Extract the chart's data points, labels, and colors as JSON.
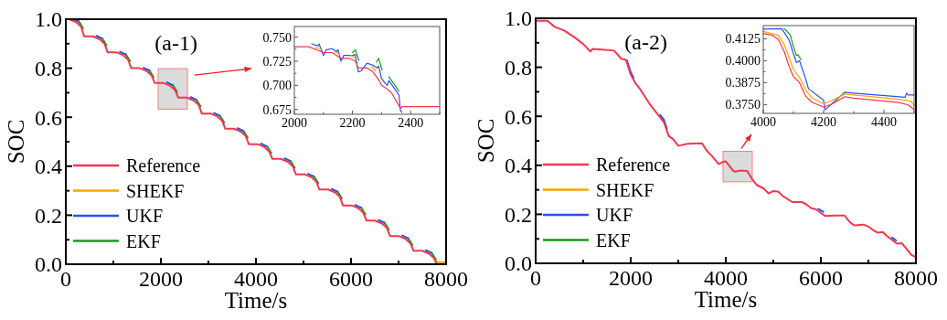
{
  "chart_data": [
    {
      "type": "line",
      "title": "(a-1)",
      "xlabel": "Time/s",
      "ylabel": "SOC",
      "legend": "bottom left",
      "grid": false,
      "xlim": [
        0,
        8000
      ],
      "ylim": [
        0,
        1
      ],
      "xticks": [
        0,
        {
          "value": 1000,
          "label": null
        },
        2000,
        {
          "value": 3000,
          "label": null
        },
        4000,
        {
          "value": 5000,
          "label": null
        },
        6000,
        {
          "value": 7000,
          "label": null
        },
        8000
      ],
      "yticks": [
        {
          "value": 0,
          "label": "0.0"
        },
        {
          "value": 0.1,
          "label": null
        },
        0.2,
        {
          "value": 0.3,
          "label": null
        },
        0.4,
        {
          "value": 0.5,
          "label": null
        },
        0.6,
        {
          "value": 0.7,
          "label": null
        },
        0.8,
        {
          "value": 0.9,
          "label": null
        },
        {
          "value": 1,
          "label": "1.0"
        }
      ],
      "series": [
        {
          "name": "Reference",
          "color": "#f0384f",
          "x": [
            0,
            70,
            220,
            320,
            385,
            565,
            715,
            815,
            880,
            1060,
            1210,
            1310,
            1375,
            1555,
            1705,
            1805,
            1870,
            2050,
            2200,
            2300,
            2365,
            2545,
            2695,
            2795,
            2860,
            3040,
            3190,
            3290,
            3355,
            3535,
            3685,
            3785,
            3850,
            4030,
            4180,
            4280,
            4345,
            4525,
            4675,
            4775,
            4840,
            5020,
            5170,
            5270,
            5335,
            5515,
            5665,
            5765,
            5830,
            6010,
            6160,
            6260,
            6325,
            6505,
            6655,
            6755,
            6820,
            7000,
            7150,
            7250,
            7315,
            7495,
            7645,
            7745,
            7810
          ],
          "values": [
            1.0,
            1.0,
            0.988,
            0.97,
            0.93,
            0.93,
            0.918,
            0.9,
            0.865,
            0.865,
            0.853,
            0.835,
            0.8,
            0.8,
            0.788,
            0.77,
            0.74,
            0.74,
            0.728,
            0.71,
            0.68,
            0.68,
            0.668,
            0.65,
            0.615,
            0.615,
            0.603,
            0.585,
            0.553,
            0.553,
            0.541,
            0.523,
            0.49,
            0.49,
            0.478,
            0.46,
            0.43,
            0.43,
            0.418,
            0.4,
            0.367,
            0.367,
            0.355,
            0.337,
            0.305,
            0.305,
            0.293,
            0.275,
            0.24,
            0.24,
            0.228,
            0.21,
            0.178,
            0.178,
            0.166,
            0.148,
            0.115,
            0.115,
            0.103,
            0.085,
            0.055,
            0.055,
            0.043,
            0.025,
            0.0
          ]
        },
        {
          "name": "SHEKF",
          "color": "#ffa500",
          "x": [
            7810,
            8000
          ],
          "values": [
            0.008,
            0.008
          ]
        },
        {
          "name": "UKF",
          "color": "#2850f0",
          "x": [
            150,
            260,
            null,
            645,
            755,
            null,
            1140,
            1250,
            null,
            1635,
            1745,
            null,
            2130,
            2240,
            null,
            2625,
            2735,
            null,
            3120,
            3230,
            null,
            3615,
            3725,
            null,
            4110,
            4220,
            null,
            4605,
            4715,
            null,
            5100,
            5210,
            null,
            5595,
            5705,
            null,
            6090,
            6200,
            null,
            6585,
            6695,
            null,
            7080,
            7190,
            null,
            7575,
            7685
          ],
          "values": [
            0.998,
            0.992,
            null,
            0.932,
            0.922,
            null,
            0.867,
            0.857,
            null,
            0.802,
            0.792,
            null,
            0.742,
            0.732,
            null,
            0.682,
            0.672,
            null,
            0.617,
            0.607,
            null,
            0.555,
            0.545,
            null,
            0.492,
            0.482,
            null,
            0.432,
            0.422,
            null,
            0.369,
            0.359,
            null,
            0.307,
            0.297,
            null,
            0.242,
            0.232,
            null,
            0.18,
            0.17,
            null,
            0.117,
            0.107,
            null,
            0.057,
            0.047
          ]
        },
        {
          "name": "EKF",
          "color": "#1a9a1a",
          "x": [
            270,
            360,
            null,
            765,
            855,
            null,
            1260,
            1350,
            null,
            1755,
            1845,
            null,
            2250,
            2340,
            null,
            2745,
            2835,
            null,
            3240,
            3330,
            null,
            3735,
            3825,
            null,
            4230,
            4320,
            null,
            4725,
            4815,
            null,
            5220,
            5310,
            null,
            5715,
            5805,
            null,
            6210,
            6300,
            null,
            6705,
            6795,
            null,
            7200,
            7290,
            null,
            7695,
            7785
          ],
          "values": [
            0.992,
            0.964,
            null,
            0.922,
            0.894,
            null,
            0.857,
            0.829,
            null,
            0.792,
            0.764,
            null,
            0.732,
            0.704,
            null,
            0.672,
            0.644,
            null,
            0.607,
            0.579,
            null,
            0.545,
            0.517,
            null,
            0.482,
            0.454,
            null,
            0.422,
            0.394,
            null,
            0.359,
            0.331,
            null,
            0.297,
            0.269,
            null,
            0.232,
            0.204,
            null,
            0.17,
            0.142,
            null,
            0.107,
            0.079,
            null,
            0.047,
            0.019
          ]
        }
      ]
    },
    {
      "type": "line",
      "legend": false,
      "grid": false,
      "xlim": [
        2000,
        2500
      ],
      "ylim": [
        0.67,
        0.761
      ],
      "xticks": [
        2000,
        {
          "value": 2100,
          "label": null
        },
        2200,
        {
          "value": 2300,
          "label": null
        },
        2400,
        {
          "value": 2500,
          "label": null
        }
      ],
      "yticks": [
        0.675,
        {
          "value": 0.6875,
          "label": null
        },
        {
          "value": 0.7,
          "label": "0.700"
        },
        {
          "value": 0.7125,
          "label": null
        },
        0.725,
        {
          "value": 0.7375,
          "label": null
        },
        {
          "value": 0.75,
          "label": "0.750"
        }
      ],
      "series": [
        {
          "color": "#f0384f",
          "x": [
            2000,
            2050,
            2100,
            2130,
            2160,
            2190,
            2210,
            2220,
            2250,
            2270,
            2290,
            2300,
            2320,
            2335,
            2365,
            2370,
            2500
          ],
          "values": [
            0.74,
            0.74,
            0.734,
            0.734,
            0.728,
            0.728,
            0.725,
            0.718,
            0.718,
            0.714,
            0.706,
            0.7,
            0.696,
            0.692,
            0.676,
            0.678,
            0.678
          ]
        },
        {
          "color": "#ffa500",
          "x": [
            2075,
            2090,
            null,
            2140,
            2155,
            null,
            2195,
            2210,
            null,
            2265,
            2280
          ],
          "values": [
            0.739,
            0.738,
            null,
            0.735,
            0.732,
            null,
            0.731,
            0.728,
            null,
            0.72,
            0.715
          ]
        },
        {
          "color": "#2850f0",
          "x": [
            2060,
            2080,
            2085,
            2095,
            2100,
            2110,
            2130,
            2145,
            2150,
            2160,
            2170,
            2200,
            2210,
            2215,
            2220,
            2230,
            2250,
            2270,
            2285,
            2290,
            2300,
            2310,
            2320,
            2325,
            2360,
            2365,
            2370
          ],
          "values": [
            0.743,
            0.741,
            0.743,
            0.735,
            0.731,
            0.737,
            0.738,
            0.735,
            0.737,
            0.725,
            0.731,
            0.731,
            0.732,
            0.722,
            0.714,
            0.715,
            0.723,
            0.721,
            0.718,
            0.72,
            0.707,
            0.703,
            0.7,
            0.705,
            0.69,
            0.674,
            0.672
          ]
        },
        {
          "color": "#1a9a1a",
          "x": [
            2200,
            2210,
            2222,
            null,
            2282,
            2290,
            2302,
            null,
            2325,
            2360
          ],
          "values": [
            0.734,
            0.737,
            0.726,
            null,
            0.724,
            0.728,
            0.716,
            null,
            0.709,
            0.694
          ]
        }
      ]
    },
    {
      "type": "line",
      "title": "(a-2)",
      "xlabel": "Time/s",
      "ylabel": "SOC",
      "legend": "bottom left",
      "grid": false,
      "xlim": [
        0,
        8000
      ],
      "ylim": [
        0,
        1
      ],
      "xticks": [
        0,
        {
          "value": 1000,
          "label": null
        },
        2000,
        {
          "value": 3000,
          "label": null
        },
        4000,
        {
          "value": 5000,
          "label": null
        },
        6000,
        {
          "value": 7000,
          "label": null
        },
        8000
      ],
      "yticks": [
        {
          "value": 0,
          "label": "0.0"
        },
        {
          "value": 0.1,
          "label": null
        },
        0.2,
        {
          "value": 0.3,
          "label": null
        },
        0.4,
        {
          "value": 0.5,
          "label": null
        },
        0.6,
        {
          "value": 0.7,
          "label": null
        },
        0.8,
        {
          "value": 0.9,
          "label": null
        },
        {
          "value": 1,
          "label": "1.0"
        }
      ],
      "series": [
        {
          "name": "Reference",
          "color": "#f0384f",
          "x": [
            0,
            250,
            400,
            600,
            800,
            1000,
            1150,
            1200,
            1400,
            1650,
            1800,
            1900,
            2000,
            2100,
            2200,
            2400,
            2600,
            2700,
            2800,
            2900,
            3000,
            3200,
            3500,
            3600,
            3700,
            3850,
            3950,
            4000,
            4100,
            4150,
            4200,
            4300,
            4450,
            4550,
            4650,
            4800,
            4900,
            5000,
            5100,
            5200,
            5400,
            5600,
            5700,
            5800,
            5900,
            6000,
            6100,
            6300,
            6500,
            6600,
            6700,
            6900,
            7000,
            7100,
            7200,
            7300,
            7400,
            7500,
            7600,
            7700,
            7800,
            7900,
            8000
          ],
          "values": [
            0.99,
            0.99,
            0.965,
            0.95,
            0.925,
            0.895,
            0.865,
            0.875,
            0.872,
            0.868,
            0.835,
            0.83,
            0.77,
            0.735,
            0.71,
            0.65,
            0.6,
            0.575,
            0.52,
            0.505,
            0.48,
            0.488,
            0.49,
            0.46,
            0.44,
            0.405,
            0.415,
            0.416,
            0.391,
            0.378,
            0.374,
            0.379,
            0.377,
            0.345,
            0.32,
            0.305,
            0.285,
            0.295,
            0.293,
            0.275,
            0.25,
            0.25,
            0.24,
            0.225,
            0.22,
            0.205,
            0.193,
            0.195,
            0.195,
            0.17,
            0.155,
            0.158,
            0.15,
            0.135,
            0.125,
            0.128,
            0.11,
            0.095,
            0.08,
            0.082,
            0.06,
            0.035,
            0.025
          ]
        },
        {
          "name": "SHEKF",
          "color": "#ffa500"
        },
        {
          "name": "UKF",
          "color": "#2850f0",
          "x": [
            1920,
            2000,
            2060,
            null,
            2620,
            2700,
            2760,
            null,
            5950,
            6050,
            null,
            7500,
            7580
          ],
          "values": [
            0.828,
            0.78,
            0.758,
            null,
            0.605,
            0.585,
            0.55,
            null,
            0.222,
            0.21,
            null,
            0.105,
            0.093
          ]
        },
        {
          "name": "EKF",
          "color": "#1a9a1a"
        }
      ]
    },
    {
      "type": "line",
      "legend": false,
      "grid": false,
      "xlim": [
        4000,
        4500
      ],
      "ylim": [
        0.37,
        0.42
      ],
      "xticks": [
        4000,
        {
          "value": 4100,
          "label": null
        },
        4200,
        {
          "value": 4300,
          "label": null
        },
        4400,
        {
          "value": 4500,
          "label": null
        }
      ],
      "yticks": [
        {
          "value": 0.375,
          "label": "0.3750"
        },
        {
          "value": 0.38125,
          "label": null
        },
        0.3875,
        {
          "value": 0.39375,
          "label": null
        },
        {
          "value": 0.4,
          "label": "0.4000"
        },
        {
          "value": 0.40625,
          "label": null
        },
        0.4125
      ],
      "series": [
        {
          "color": "#f0384f",
          "x": [
            4000,
            4030,
            4050,
            4070,
            4085,
            4100,
            4120,
            4140,
            4160,
            4200,
            4230,
            4270,
            4300,
            4450,
            4480,
            4500
          ],
          "values": [
            0.4155,
            0.4145,
            0.412,
            0.405,
            0.397,
            0.391,
            0.3875,
            0.38,
            0.3765,
            0.3735,
            0.3755,
            0.3795,
            0.3787,
            0.3762,
            0.3748,
            0.3722
          ]
        },
        {
          "color": "#ffa500",
          "x": [
            4000,
            4050,
            4070,
            4085,
            4100,
            4120,
            4140,
            4160,
            4200,
            4230,
            4270,
            4300,
            4450,
            4490,
            4500
          ],
          "values": [
            0.4167,
            0.4145,
            0.409,
            0.402,
            0.395,
            0.3905,
            0.3835,
            0.379,
            0.3755,
            0.3775,
            0.381,
            0.3805,
            0.378,
            0.377,
            0.3745
          ]
        },
        {
          "color": "#2850f0",
          "x": [
            4000,
            4060,
            4070,
            4085,
            4100,
            4110,
            4120,
            4130,
            4140,
            4150,
            4200,
            4205,
            4270,
            4300,
            4470,
            4475,
            4480,
            4500
          ],
          "values": [
            0.418,
            0.4182,
            0.416,
            0.412,
            0.404,
            0.399,
            0.4,
            0.395,
            0.39,
            0.384,
            0.3775,
            0.372,
            0.382,
            0.3815,
            0.3792,
            0.3815,
            0.3805,
            0.3805
          ]
        },
        {
          "color": "#1a9a1a",
          "x": [
            4068,
            4075,
            4090,
            4100,
            4110,
            4115,
            4125
          ],
          "values": [
            0.4182,
            0.4175,
            0.4145,
            0.408,
            0.403,
            0.4035,
            0.4005
          ]
        }
      ]
    }
  ]
}
